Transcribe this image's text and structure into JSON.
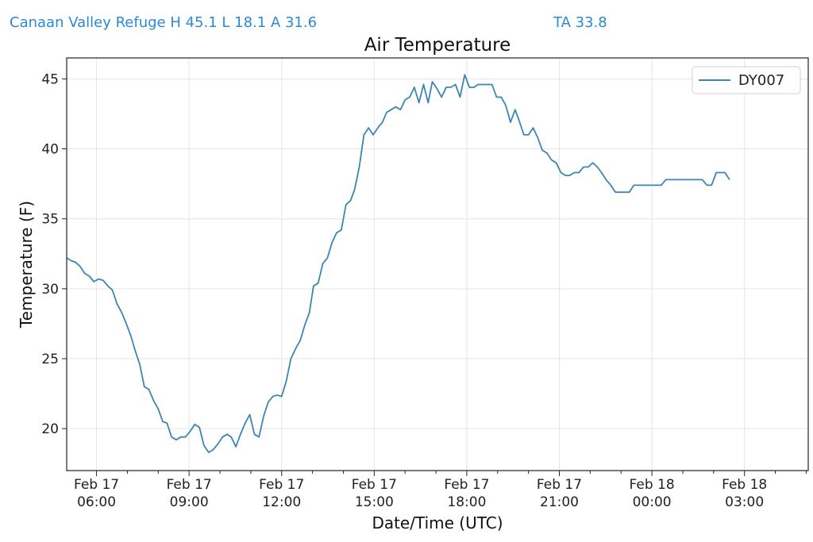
{
  "header": {
    "station_summary": "Canaan Valley Refuge H 45.1 L 18.1 A 31.6",
    "ta_readout": "TA 33.8"
  },
  "colors": {
    "header_text": "#2a8ad8",
    "series_line": "#3b86b2",
    "grid": "#e6e6e6",
    "axes": "#222222"
  },
  "chart_data": {
    "type": "line",
    "title": "Air Temperature",
    "xlabel": "Date/Time (UTC)",
    "ylabel": "Temperature (F)",
    "x_range": [
      "2023-02-17 05:02",
      "2023-02-18 05:04"
    ],
    "ylim": [
      17,
      46.5
    ],
    "yticks": [
      20,
      25,
      30,
      35,
      40,
      45
    ],
    "xticks": [
      {
        "x": "2023-02-17 06:00",
        "date": "Feb 17",
        "time": "06:00"
      },
      {
        "x": "2023-02-17 09:00",
        "date": "Feb 17",
        "time": "09:00"
      },
      {
        "x": "2023-02-17 12:00",
        "date": "Feb 17",
        "time": "12:00"
      },
      {
        "x": "2023-02-17 15:00",
        "date": "Feb 17",
        "time": "15:00"
      },
      {
        "x": "2023-02-17 18:00",
        "date": "Feb 17",
        "time": "18:00"
      },
      {
        "x": "2023-02-17 21:00",
        "date": "Feb 17",
        "time": "21:00"
      },
      {
        "x": "2023-02-18 00:00",
        "date": "Feb 18",
        "time": "00:00"
      },
      {
        "x": "2023-02-18 03:00",
        "date": "Feb 18",
        "time": "03:00"
      }
    ],
    "minor_ticks": [
      "2023-02-17 07:00",
      "2023-02-17 08:00",
      "2023-02-17 10:00",
      "2023-02-17 11:00",
      "2023-02-17 13:00",
      "2023-02-17 14:00",
      "2023-02-17 16:00",
      "2023-02-17 17:00",
      "2023-02-17 19:00",
      "2023-02-17 20:00",
      "2023-02-17 22:00",
      "2023-02-17 23:00",
      "2023-02-18 01:00",
      "2023-02-18 02:00",
      "2023-02-18 04:00",
      "2023-02-18 05:00"
    ],
    "grid": true,
    "legend_position": "top-right",
    "series": [
      {
        "name": "DY007",
        "points": [
          [
            "2023-02-17 05:02",
            32.2
          ],
          [
            "2023-02-17 05:11",
            32.0
          ],
          [
            "2023-02-17 05:19",
            31.9
          ],
          [
            "2023-02-17 05:28",
            31.6
          ],
          [
            "2023-02-17 05:37",
            31.1
          ],
          [
            "2023-02-17 05:46",
            30.9
          ],
          [
            "2023-02-17 05:55",
            30.5
          ],
          [
            "2023-02-17 06:04",
            30.7
          ],
          [
            "2023-02-17 06:13",
            30.6
          ],
          [
            "2023-02-17 06:22",
            30.2
          ],
          [
            "2023-02-17 06:31",
            29.9
          ],
          [
            "2023-02-17 06:40",
            28.9
          ],
          [
            "2023-02-17 06:49",
            28.3
          ],
          [
            "2023-02-17 06:58",
            27.5
          ],
          [
            "2023-02-17 07:07",
            26.6
          ],
          [
            "2023-02-17 07:15",
            25.6
          ],
          [
            "2023-02-17 07:24",
            24.6
          ],
          [
            "2023-02-17 07:33",
            23.0
          ],
          [
            "2023-02-17 07:42",
            22.8
          ],
          [
            "2023-02-17 07:51",
            22.0
          ],
          [
            "2023-02-17 08:00",
            21.4
          ],
          [
            "2023-02-17 08:09",
            20.5
          ],
          [
            "2023-02-17 08:17",
            20.4
          ],
          [
            "2023-02-17 08:26",
            19.4
          ],
          [
            "2023-02-17 08:35",
            19.2
          ],
          [
            "2023-02-17 08:44",
            19.4
          ],
          [
            "2023-02-17 08:53",
            19.4
          ],
          [
            "2023-02-17 09:02",
            19.8
          ],
          [
            "2023-02-17 09:11",
            20.3
          ],
          [
            "2023-02-17 09:20",
            20.1
          ],
          [
            "2023-02-17 09:29",
            18.8
          ],
          [
            "2023-02-17 09:38",
            18.3
          ],
          [
            "2023-02-17 09:47",
            18.5
          ],
          [
            "2023-02-17 09:56",
            18.9
          ],
          [
            "2023-02-17 10:05",
            19.4
          ],
          [
            "2023-02-17 10:14",
            19.6
          ],
          [
            "2023-02-17 10:22",
            19.4
          ],
          [
            "2023-02-17 10:31",
            18.7
          ],
          [
            "2023-02-17 10:40",
            19.6
          ],
          [
            "2023-02-17 10:49",
            20.4
          ],
          [
            "2023-02-17 10:58",
            21.0
          ],
          [
            "2023-02-17 11:07",
            19.6
          ],
          [
            "2023-02-17 11:16",
            19.4
          ],
          [
            "2023-02-17 11:25",
            20.9
          ],
          [
            "2023-02-17 11:34",
            21.9
          ],
          [
            "2023-02-17 11:43",
            22.3
          ],
          [
            "2023-02-17 11:51",
            22.4
          ],
          [
            "2023-02-17 12:00",
            22.3
          ],
          [
            "2023-02-17 12:09",
            23.4
          ],
          [
            "2023-02-17 12:18",
            25.0
          ],
          [
            "2023-02-17 12:27",
            25.7
          ],
          [
            "2023-02-17 12:36",
            26.3
          ],
          [
            "2023-02-17 12:45",
            27.4
          ],
          [
            "2023-02-17 12:54",
            28.3
          ],
          [
            "2023-02-17 13:02",
            30.2
          ],
          [
            "2023-02-17 13:11",
            30.4
          ],
          [
            "2023-02-17 13:20",
            31.8
          ],
          [
            "2023-02-17 13:29",
            32.2
          ],
          [
            "2023-02-17 13:38",
            33.3
          ],
          [
            "2023-02-17 13:47",
            34.0
          ],
          [
            "2023-02-17 13:56",
            34.2
          ],
          [
            "2023-02-17 14:05",
            36.0
          ],
          [
            "2023-02-17 14:14",
            36.3
          ],
          [
            "2023-02-17 14:22",
            37.1
          ],
          [
            "2023-02-17 14:31",
            38.7
          ],
          [
            "2023-02-17 14:40",
            41.0
          ],
          [
            "2023-02-17 14:49",
            41.5
          ],
          [
            "2023-02-17 14:58",
            41.0
          ],
          [
            "2023-02-17 15:07",
            41.5
          ],
          [
            "2023-02-17 15:16",
            41.9
          ],
          [
            "2023-02-17 15:24",
            42.6
          ],
          [
            "2023-02-17 15:33",
            42.8
          ],
          [
            "2023-02-17 15:42",
            43.0
          ],
          [
            "2023-02-17 15:51",
            42.8
          ],
          [
            "2023-02-17 16:00",
            43.5
          ],
          [
            "2023-02-17 16:09",
            43.7
          ],
          [
            "2023-02-17 16:18",
            44.4
          ],
          [
            "2023-02-17 16:27",
            43.3
          ],
          [
            "2023-02-17 16:36",
            44.6
          ],
          [
            "2023-02-17 16:45",
            43.3
          ],
          [
            "2023-02-17 16:53",
            44.8
          ],
          [
            "2023-02-17 17:02",
            44.3
          ],
          [
            "2023-02-17 17:11",
            43.7
          ],
          [
            "2023-02-17 17:20",
            44.4
          ],
          [
            "2023-02-17 17:29",
            44.4
          ],
          [
            "2023-02-17 17:38",
            44.6
          ],
          [
            "2023-02-17 17:47",
            43.7
          ],
          [
            "2023-02-17 17:56",
            45.3
          ],
          [
            "2023-02-17 18:05",
            44.4
          ],
          [
            "2023-02-17 18:14",
            44.4
          ],
          [
            "2023-02-17 18:22",
            44.6
          ],
          [
            "2023-02-17 18:31",
            44.6
          ],
          [
            "2023-02-17 18:40",
            44.6
          ],
          [
            "2023-02-17 18:49",
            44.6
          ],
          [
            "2023-02-17 18:58",
            43.7
          ],
          [
            "2023-02-17 19:07",
            43.7
          ],
          [
            "2023-02-17 19:16",
            43.1
          ],
          [
            "2023-02-17 19:25",
            41.9
          ],
          [
            "2023-02-17 19:34",
            42.8
          ],
          [
            "2023-02-17 19:43",
            41.9
          ],
          [
            "2023-02-17 19:51",
            41.0
          ],
          [
            "2023-02-17 20:00",
            41.0
          ],
          [
            "2023-02-17 20:09",
            41.5
          ],
          [
            "2023-02-17 20:18",
            40.8
          ],
          [
            "2023-02-17 20:27",
            39.9
          ],
          [
            "2023-02-17 20:36",
            39.7
          ],
          [
            "2023-02-17 20:45",
            39.2
          ],
          [
            "2023-02-17 20:54",
            39.0
          ],
          [
            "2023-02-17 21:03",
            38.3
          ],
          [
            "2023-02-17 21:12",
            38.1
          ],
          [
            "2023-02-17 21:20",
            38.1
          ],
          [
            "2023-02-17 21:29",
            38.3
          ],
          [
            "2023-02-17 21:38",
            38.3
          ],
          [
            "2023-02-17 21:47",
            38.7
          ],
          [
            "2023-02-17 21:56",
            38.7
          ],
          [
            "2023-02-17 22:05",
            39.0
          ],
          [
            "2023-02-17 22:14",
            38.7
          ],
          [
            "2023-02-17 22:22",
            38.3
          ],
          [
            "2023-02-17 22:31",
            37.8
          ],
          [
            "2023-02-17 22:40",
            37.4
          ],
          [
            "2023-02-17 22:49",
            36.9
          ],
          [
            "2023-02-17 22:58",
            36.9
          ],
          [
            "2023-02-17 23:07",
            36.9
          ],
          [
            "2023-02-17 23:16",
            36.9
          ],
          [
            "2023-02-17 23:25",
            37.4
          ],
          [
            "2023-02-17 23:34",
            37.4
          ],
          [
            "2023-02-17 23:43",
            37.4
          ],
          [
            "2023-02-17 23:51",
            37.4
          ],
          [
            "2023-02-18 00:00",
            37.4
          ],
          [
            "2023-02-18 00:09",
            37.4
          ],
          [
            "2023-02-18 00:18",
            37.4
          ],
          [
            "2023-02-18 00:27",
            37.8
          ],
          [
            "2023-02-18 00:36",
            37.8
          ],
          [
            "2023-02-18 00:45",
            37.8
          ],
          [
            "2023-02-18 00:54",
            37.8
          ],
          [
            "2023-02-18 01:03",
            37.8
          ],
          [
            "2023-02-18 01:12",
            37.8
          ],
          [
            "2023-02-18 01:20",
            37.8
          ],
          [
            "2023-02-18 01:29",
            37.8
          ],
          [
            "2023-02-18 01:38",
            37.8
          ],
          [
            "2023-02-18 01:47",
            37.4
          ],
          [
            "2023-02-18 01:56",
            37.4
          ],
          [
            "2023-02-18 02:05",
            38.3
          ],
          [
            "2023-02-18 02:14",
            38.3
          ],
          [
            "2023-02-18 02:22",
            38.3
          ],
          [
            "2023-02-18 02:31",
            37.8
          ]
        ]
      }
    ]
  }
}
